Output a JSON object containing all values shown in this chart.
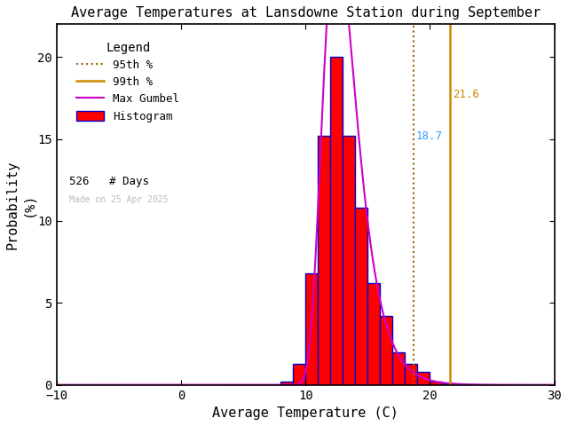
{
  "title": "Average Temperatures at Lansdowne Station during September",
  "xlabel": "Average Temperature (C)",
  "ylabel": "Probability\n(%)",
  "xlim": [
    -10,
    30
  ],
  "ylim": [
    0,
    22
  ],
  "xticks": [
    -10,
    0,
    10,
    20,
    30
  ],
  "yticks": [
    0,
    5,
    10,
    15,
    20
  ],
  "hist_bins_left": [
    8.0,
    9.0,
    10.0,
    11.0,
    12.0,
    13.0,
    14.0,
    15.0,
    16.0,
    17.0,
    18.0,
    19.0,
    20.0,
    21.0
  ],
  "hist_values": [
    0.2,
    1.3,
    6.8,
    15.2,
    20.0,
    15.2,
    10.8,
    6.2,
    4.2,
    2.0,
    1.3,
    0.8,
    0.2,
    0.1
  ],
  "hist_color": "#FF0000",
  "hist_edgecolor": "#0000CC",
  "gumbel_color": "#CC00CC",
  "pct95_value": 18.7,
  "pct95_color": "#996600",
  "pct95_linestyle": "dotted",
  "pct99_value": 21.6,
  "pct99_color": "#CC8800",
  "pct99_linestyle": "solid",
  "pct95_label_color": "#3399FF",
  "pct99_label_color": "#CC8800",
  "n_days": 526,
  "watermark": "Made on 25 Apr 2025",
  "watermark_color": "#BBBBBB",
  "legend_title": "Legend",
  "background_color": "#FFFFFF",
  "gumbel_mu": 12.5,
  "gumbel_beta": 1.35,
  "gumbel_scale": 100.0
}
